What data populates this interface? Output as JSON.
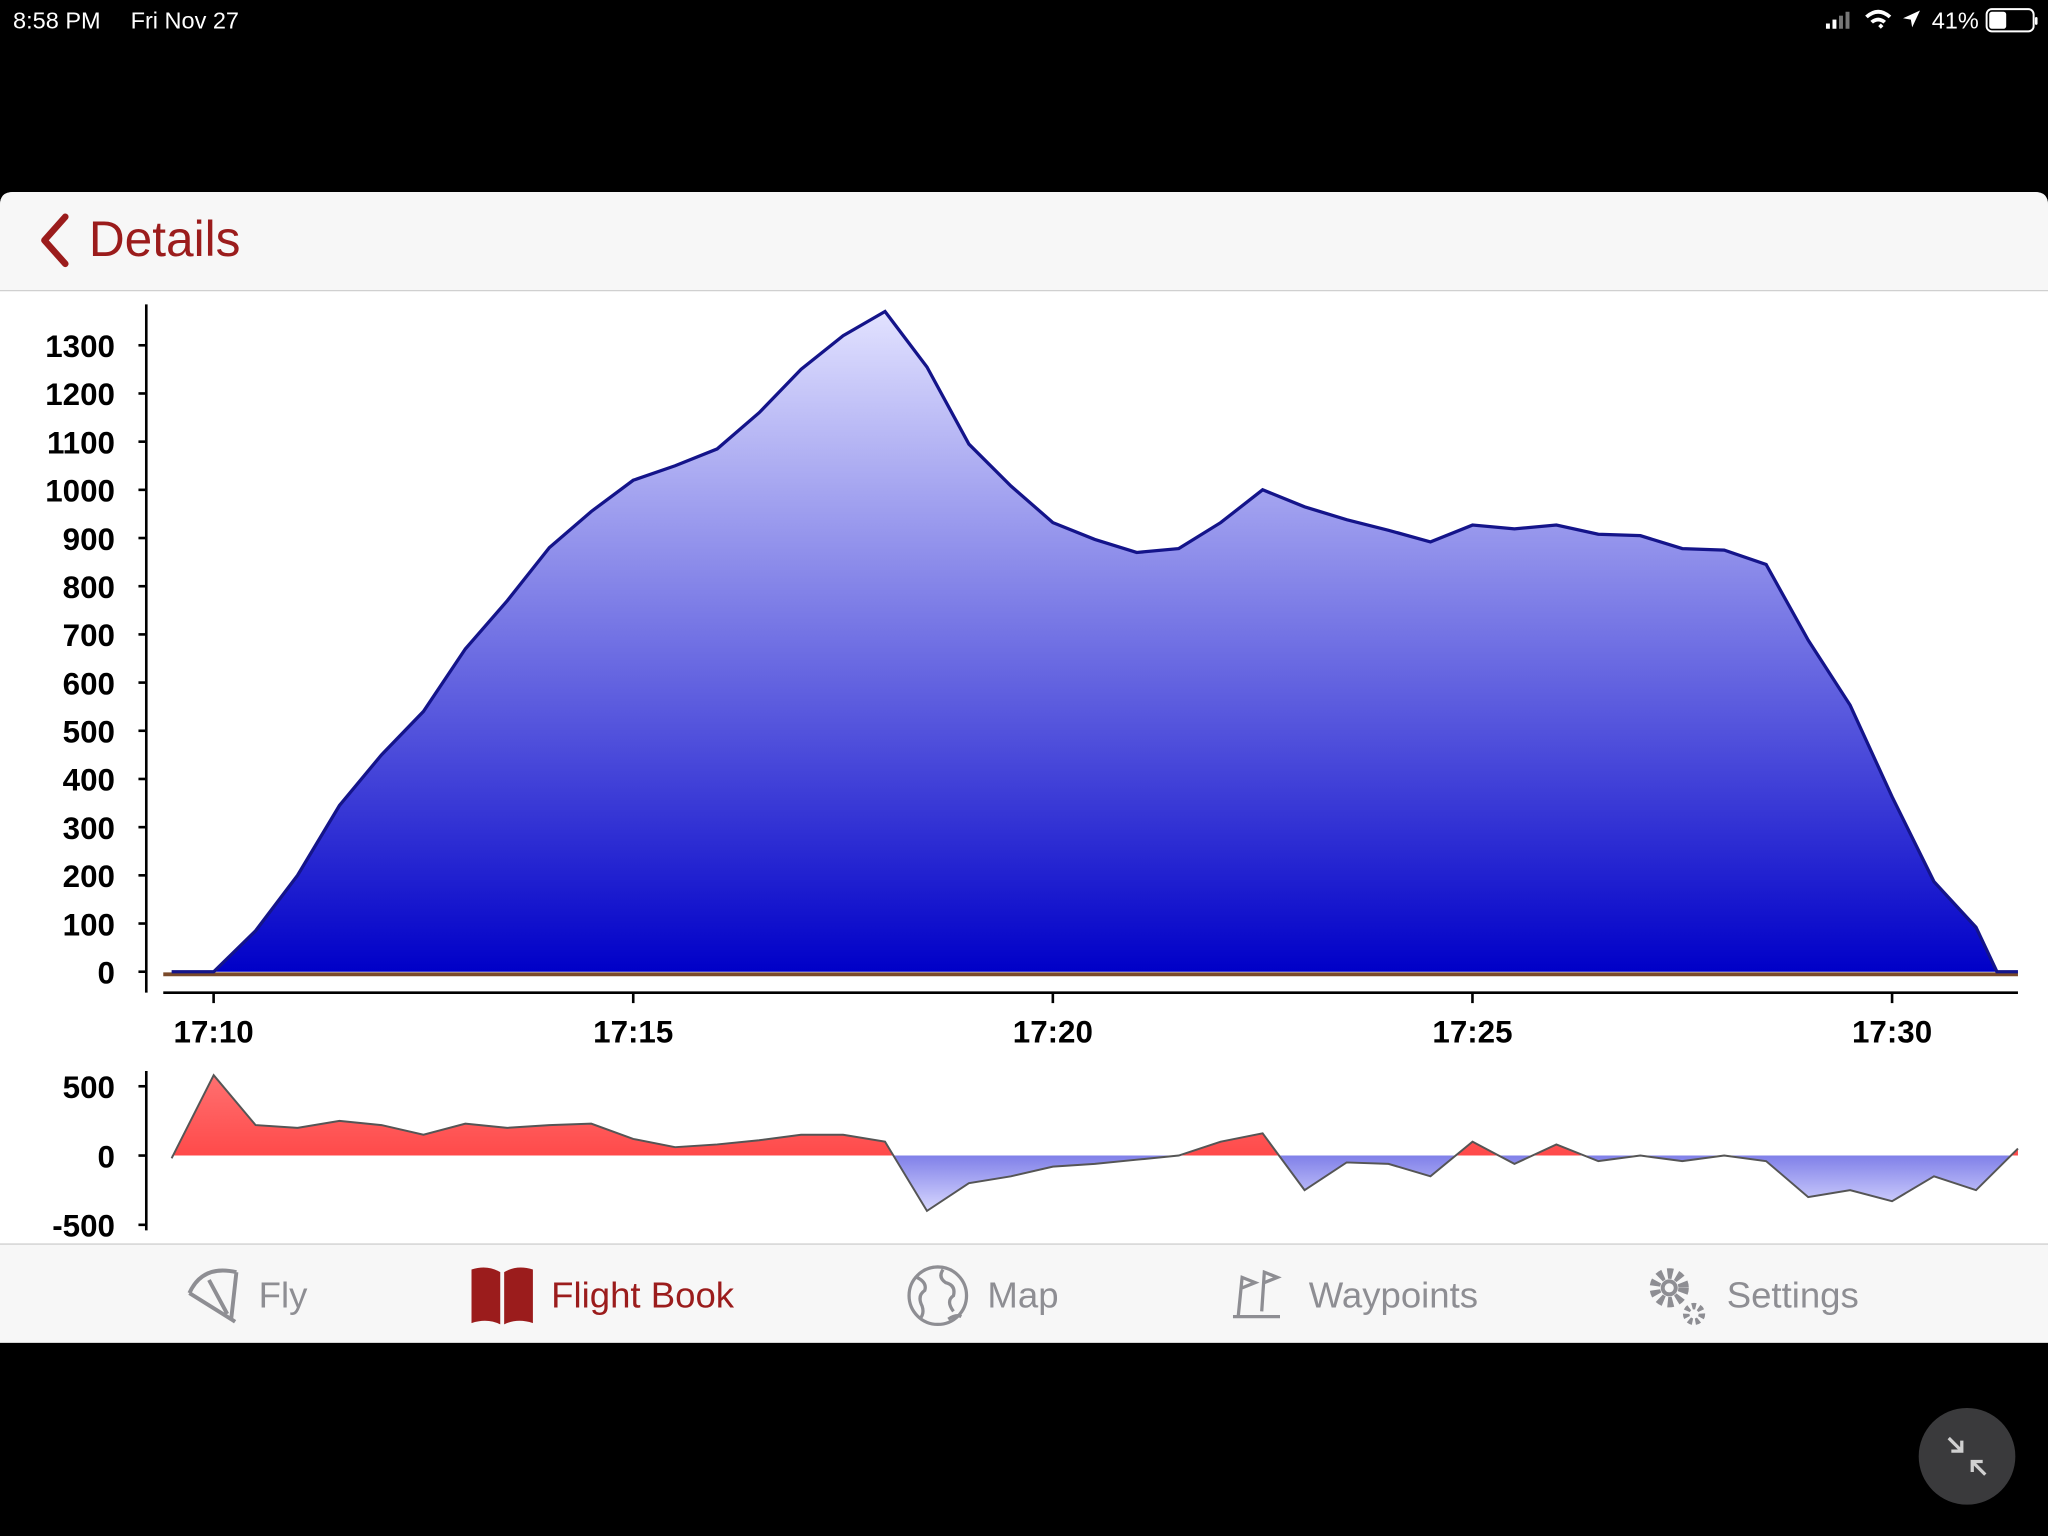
{
  "status_bar": {
    "time": "8:58 PM",
    "date": "Fri Nov 27",
    "battery": "41%"
  },
  "nav": {
    "back_label": "Details"
  },
  "chart_data": [
    {
      "type": "area",
      "color": "#0000c8",
      "line_color": "#14148a",
      "x": [
        "17:09:30",
        "17:10:00",
        "17:10:30",
        "17:11:00",
        "17:11:30",
        "17:12:00",
        "17:12:30",
        "17:13:00",
        "17:13:30",
        "17:14:00",
        "17:14:30",
        "17:15:00",
        "17:15:30",
        "17:16:00",
        "17:16:30",
        "17:17:00",
        "17:17:30",
        "17:18:00",
        "17:18:30",
        "17:19:00",
        "17:19:30",
        "17:20:00",
        "17:20:30",
        "17:21:00",
        "17:21:30",
        "17:22:00",
        "17:22:30",
        "17:23:00",
        "17:23:30",
        "17:24:00",
        "17:24:30",
        "17:25:00",
        "17:25:30",
        "17:26:00",
        "17:26:30",
        "17:27:00",
        "17:27:30",
        "17:28:00",
        "17:28:30",
        "17:29:00",
        "17:29:30",
        "17:30:00",
        "17:30:30",
        "17:31:00",
        "17:31:15",
        "17:31:30"
      ],
      "values": [
        0,
        0,
        85,
        200,
        345,
        450,
        540,
        670,
        770,
        880,
        955,
        1020,
        1050,
        1085,
        1160,
        1250,
        1320,
        1370,
        1255,
        1095,
        1008,
        932,
        897,
        870,
        878,
        932,
        1000,
        965,
        938,
        916,
        892,
        927,
        919,
        927,
        908,
        905,
        878,
        875,
        845,
        688,
        553,
        363,
        187,
        92,
        0,
        0
      ],
      "xlim": [
        "17:09:24",
        "17:31:30"
      ],
      "xticks": [
        {
          "value": "17:10:00",
          "label": "17:10"
        },
        {
          "value": "17:15:00",
          "label": "17:15"
        },
        {
          "value": "17:20:00",
          "label": "17:20"
        },
        {
          "value": "17:25:00",
          "label": "17:25"
        },
        {
          "value": "17:30:00",
          "label": "17:30"
        }
      ],
      "ylim": [
        -15,
        1385
      ],
      "yticks": [
        0,
        100,
        200,
        300,
        400,
        500,
        600,
        700,
        800,
        900,
        1000,
        1100,
        1200,
        1300
      ]
    },
    {
      "type": "diverging-area",
      "positive_color": "#ff3030",
      "negative_color": "#0000c8",
      "line_color": "#555555",
      "x": [
        "17:09:30",
        "17:10:00",
        "17:10:30",
        "17:11:00",
        "17:11:30",
        "17:12:00",
        "17:12:30",
        "17:13:00",
        "17:13:30",
        "17:14:00",
        "17:14:30",
        "17:15:00",
        "17:15:30",
        "17:16:00",
        "17:16:30",
        "17:17:00",
        "17:17:30",
        "17:18:00",
        "17:18:30",
        "17:19:00",
        "17:19:30",
        "17:20:00",
        "17:20:30",
        "17:21:00",
        "17:21:30",
        "17:22:00",
        "17:22:30",
        "17:23:00",
        "17:23:30",
        "17:24:00",
        "17:24:30",
        "17:25:00",
        "17:25:30",
        "17:26:00",
        "17:26:30",
        "17:27:00",
        "17:27:30",
        "17:28:00",
        "17:28:30",
        "17:29:00",
        "17:29:30",
        "17:30:00",
        "17:30:30",
        "17:31:00",
        "17:31:30"
      ],
      "values": [
        -20,
        580,
        220,
        200,
        250,
        220,
        150,
        230,
        200,
        220,
        230,
        120,
        60,
        80,
        110,
        150,
        150,
        100,
        -400,
        -200,
        -150,
        -80,
        -60,
        -30,
        0,
        100,
        160,
        -250,
        -50,
        -60,
        -150,
        100,
        -60,
        80,
        -40,
        0,
        -40,
        0,
        -40,
        -300,
        -250,
        -330,
        -150,
        -250,
        50
      ],
      "xlim": [
        "17:09:24",
        "17:31:30"
      ],
      "ylim": [
        -540,
        610
      ],
      "yticks": [
        -500,
        0,
        500
      ]
    }
  ],
  "tab_bar": {
    "tabs": [
      "Fly",
      "Flight Book",
      "Map",
      "Waypoints",
      "Settings"
    ],
    "selected": 1,
    "active_color": "#9b1c1c",
    "inactive_color": "#8e8e93"
  }
}
